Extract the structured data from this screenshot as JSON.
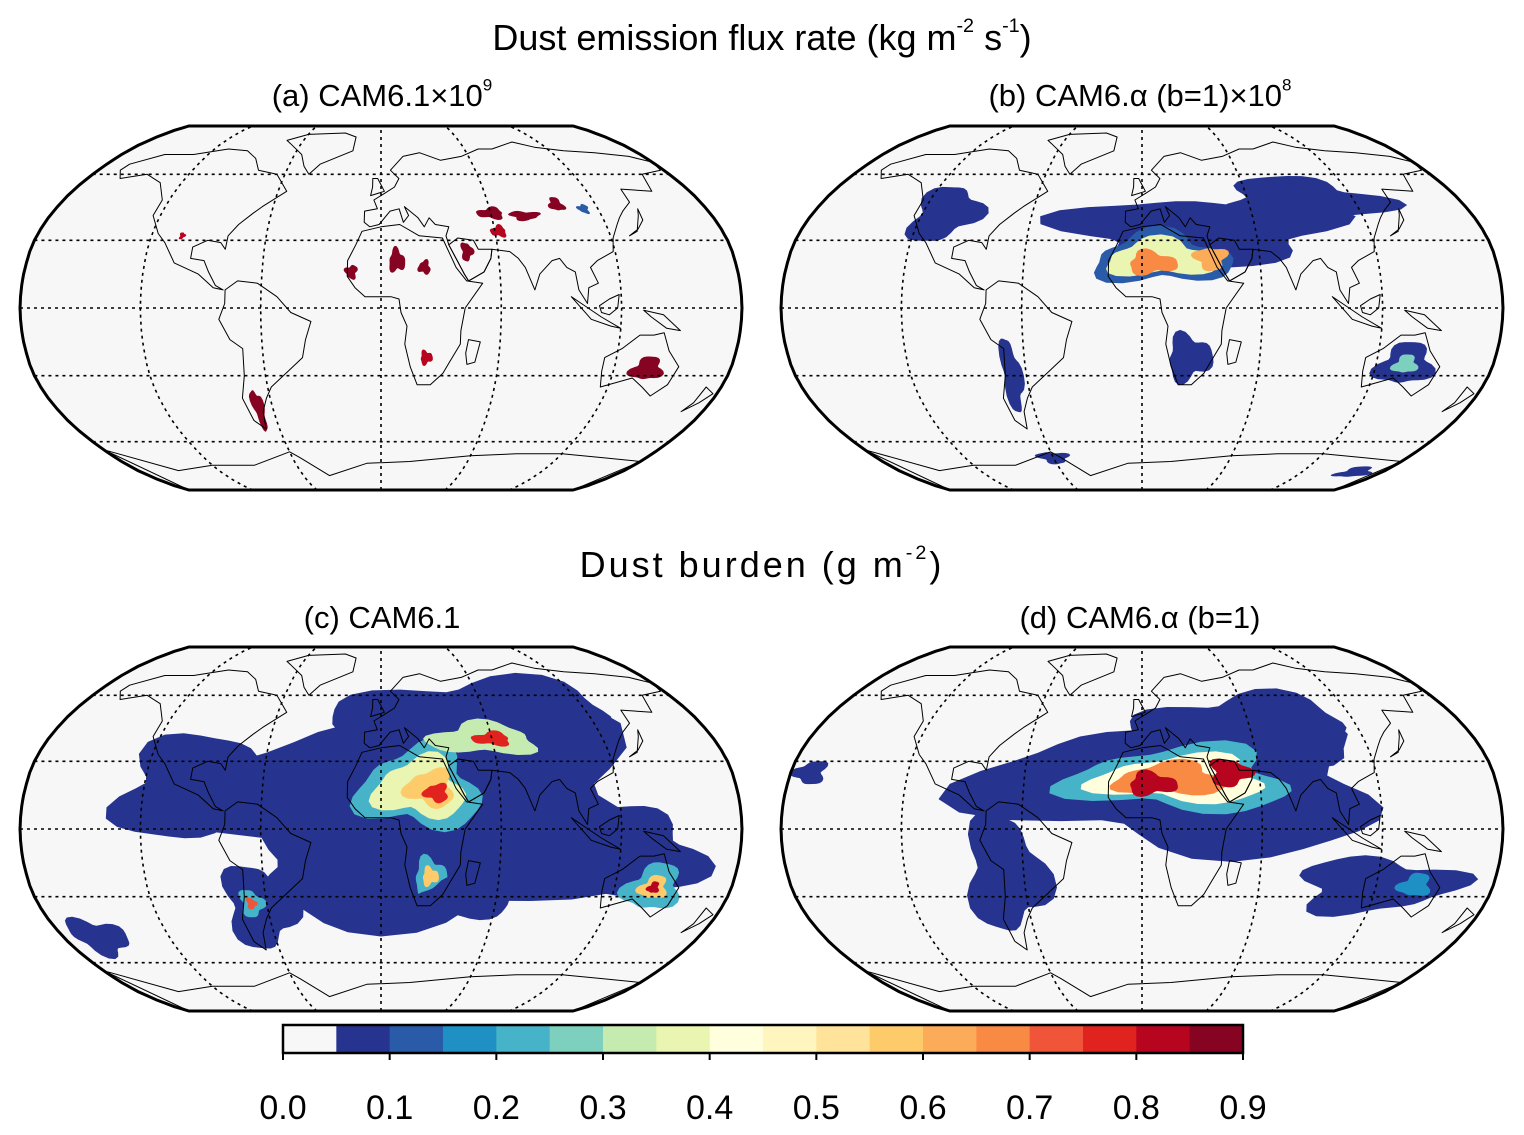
{
  "titles": {
    "emission_prefix": "Dust emission flux rate (kg m",
    "emission_exp1": "-2",
    "emission_mid": " s",
    "emission_exp2": "-1",
    "emission_suffix": ")",
    "burden_prefix": "Dust burden (g m",
    "burden_exp": "-2",
    "burden_suffix": ")"
  },
  "panels": [
    {
      "id": "a",
      "label_main": "(a) CAM6.1×10",
      "label_exp": "9"
    },
    {
      "id": "b",
      "label_main": "(b) CAM6.α (b=1)×10",
      "label_exp": "8"
    },
    {
      "id": "c",
      "label_main": "(c) CAM6.1",
      "label_exp": ""
    },
    {
      "id": "d",
      "label_main": "(d) CAM6.α (b=1)",
      "label_exp": ""
    }
  ],
  "colorbar": {
    "ticks": [
      "0.0",
      "0.1",
      "0.2",
      "0.3",
      "0.4",
      "0.5",
      "0.6",
      "0.7",
      "0.8",
      "0.9"
    ],
    "levels": 18,
    "colors": [
      "#f7f7f7",
      "#26348f",
      "#2a5ba8",
      "#1e90c4",
      "#46b3c9",
      "#7dd0bd",
      "#c6ebb0",
      "#e9f5b0",
      "#ffffdd",
      "#fff5bf",
      "#ffe39a",
      "#fecb6a",
      "#fcac58",
      "#f88a44",
      "#f0553a",
      "#e0231f",
      "#b8051f",
      "#870322"
    ]
  },
  "projection": "Robinson",
  "graticule": {
    "meridian_step_deg": 60,
    "parallel_step_deg": 30,
    "style": "dotted"
  }
}
